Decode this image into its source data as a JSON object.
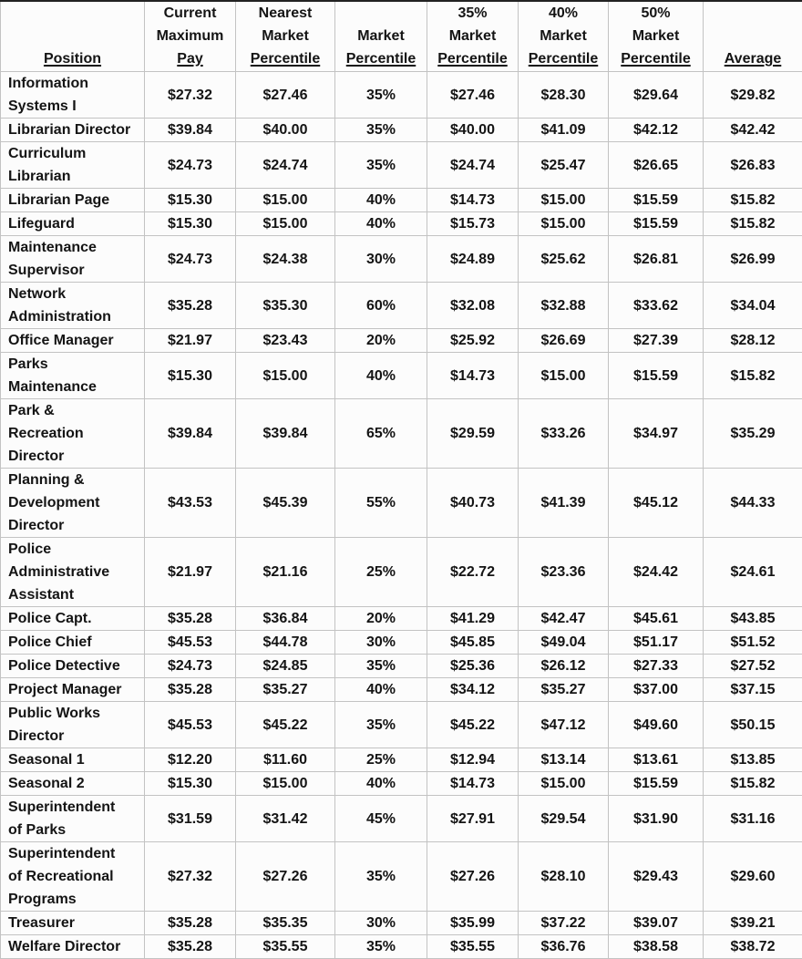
{
  "colors": {
    "background": "#fcfcfc",
    "border": "#c3c3c3",
    "text": "#141414",
    "top_border": "#222222"
  },
  "table": {
    "headers": [
      {
        "id": "position",
        "lines": [
          "Position"
        ]
      },
      {
        "id": "current-maximum-pay",
        "lines": [
          "Current",
          "Maximum",
          "Pay"
        ]
      },
      {
        "id": "nearest-market-percentile",
        "lines": [
          "Nearest",
          "Market",
          "Percentile"
        ]
      },
      {
        "id": "market-percentile",
        "lines": [
          "Market",
          "Percentile"
        ]
      },
      {
        "id": "35-market-percentile",
        "lines": [
          "35%",
          "Market",
          "Percentile"
        ]
      },
      {
        "id": "40-market-percentile",
        "lines": [
          "40%",
          "Market",
          "Percentile"
        ]
      },
      {
        "id": "50-market-percentile",
        "lines": [
          "50%",
          "Market",
          "Percentile"
        ]
      },
      {
        "id": "average",
        "lines": [
          "Average"
        ]
      }
    ],
    "rows": [
      {
        "position": "Information\nSystems I",
        "values": [
          "$27.32",
          "$27.46",
          "35%",
          "$27.46",
          "$28.30",
          "$29.64",
          "$29.82"
        ]
      },
      {
        "position": "Librarian Director",
        "values": [
          "$39.84",
          "$40.00",
          "35%",
          "$40.00",
          "$41.09",
          "$42.12",
          "$42.42"
        ]
      },
      {
        "position": "Curriculum\nLibrarian",
        "values": [
          "$24.73",
          "$24.74",
          "35%",
          "$24.74",
          "$25.47",
          "$26.65",
          "$26.83"
        ]
      },
      {
        "position": "Librarian Page",
        "values": [
          "$15.30",
          "$15.00",
          "40%",
          "$14.73",
          "$15.00",
          "$15.59",
          "$15.82"
        ]
      },
      {
        "position": "Lifeguard",
        "values": [
          "$15.30",
          "$15.00",
          "40%",
          "$15.73",
          "$15.00",
          "$15.59",
          "$15.82"
        ]
      },
      {
        "position": "Maintenance\nSupervisor",
        "values": [
          "$24.73",
          "$24.38",
          "30%",
          "$24.89",
          "$25.62",
          "$26.81",
          "$26.99"
        ]
      },
      {
        "position": "Network\nAdministration",
        "values": [
          "$35.28",
          "$35.30",
          "60%",
          "$32.08",
          "$32.88",
          "$33.62",
          "$34.04"
        ]
      },
      {
        "position": "Office Manager",
        "values": [
          "$21.97",
          "$23.43",
          "20%",
          "$25.92",
          "$26.69",
          "$27.39",
          "$28.12"
        ]
      },
      {
        "position": "Parks\nMaintenance",
        "values": [
          "$15.30",
          "$15.00",
          "40%",
          "$14.73",
          "$15.00",
          "$15.59",
          "$15.82"
        ]
      },
      {
        "position": "Park &\nRecreation\nDirector",
        "values": [
          "$39.84",
          "$39.84",
          "65%",
          "$29.59",
          "$33.26",
          "$34.97",
          "$35.29"
        ]
      },
      {
        "position": "Planning &\nDevelopment\nDirector",
        "values": [
          "$43.53",
          "$45.39",
          "55%",
          "$40.73",
          "$41.39",
          "$45.12",
          "$44.33"
        ]
      },
      {
        "position": "Police\nAdministrative\nAssistant",
        "values": [
          "$21.97",
          "$21.16",
          "25%",
          "$22.72",
          "$23.36",
          "$24.42",
          "$24.61"
        ]
      },
      {
        "position": "Police Capt.",
        "values": [
          "$35.28",
          "$36.84",
          "20%",
          "$41.29",
          "$42.47",
          "$45.61",
          "$43.85"
        ]
      },
      {
        "position": "Police Chief",
        "values": [
          "$45.53",
          "$44.78",
          "30%",
          "$45.85",
          "$49.04",
          "$51.17",
          "$51.52"
        ]
      },
      {
        "position": "Police Detective",
        "values": [
          "$24.73",
          "$24.85",
          "35%",
          "$25.36",
          "$26.12",
          "$27.33",
          "$27.52"
        ]
      },
      {
        "position": "Project Manager",
        "values": [
          "$35.28",
          "$35.27",
          "40%",
          "$34.12",
          "$35.27",
          "$37.00",
          "$37.15"
        ]
      },
      {
        "position": "Public Works\nDirector",
        "values": [
          "$45.53",
          "$45.22",
          "35%",
          "$45.22",
          "$47.12",
          "$49.60",
          "$50.15"
        ]
      },
      {
        "position": "Seasonal 1",
        "values": [
          "$12.20",
          "$11.60",
          "25%",
          "$12.94",
          "$13.14",
          "$13.61",
          "$13.85"
        ]
      },
      {
        "position": "Seasonal 2",
        "values": [
          "$15.30",
          "$15.00",
          "40%",
          "$14.73",
          "$15.00",
          "$15.59",
          "$15.82"
        ]
      },
      {
        "position": "Superintendent\nof Parks",
        "values": [
          "$31.59",
          "$31.42",
          "45%",
          "$27.91",
          "$29.54",
          "$31.90",
          "$31.16"
        ]
      },
      {
        "position": "Superintendent\nof Recreational\nPrograms",
        "values": [
          "$27.32",
          "$27.26",
          "35%",
          "$27.26",
          "$28.10",
          "$29.43",
          "$29.60"
        ]
      },
      {
        "position": "Treasurer",
        "values": [
          "$35.28",
          "$35.35",
          "30%",
          "$35.99",
          "$37.22",
          "$39.07",
          "$39.21"
        ]
      },
      {
        "position": "Welfare Director",
        "values": [
          "$35.28",
          "$35.55",
          "35%",
          "$35.55",
          "$36.76",
          "$38.58",
          "$38.72"
        ]
      }
    ]
  }
}
